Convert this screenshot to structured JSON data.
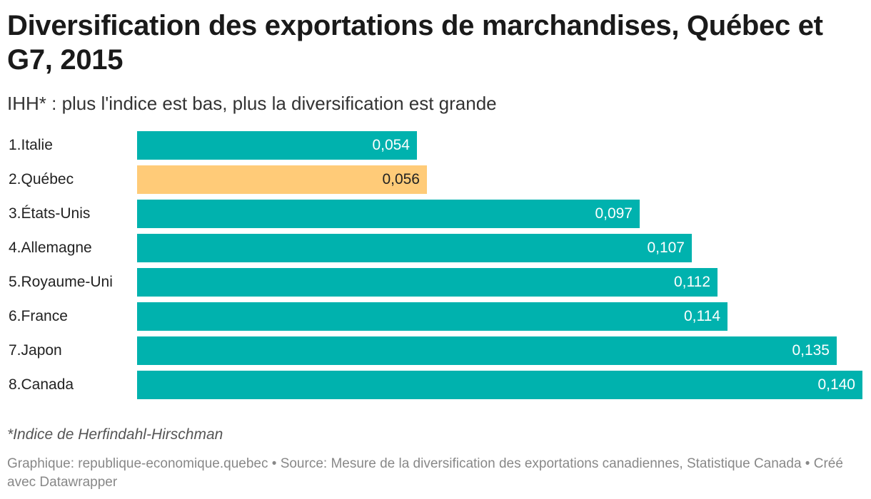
{
  "header": {
    "title": "Diversification des exportations de marchandises, Québec et G7, 2015",
    "subtitle": "IHH* : plus l'indice est bas, plus la diversification est grande"
  },
  "colors": {
    "default_bar": "#00B2AE",
    "highlight_bar": "#FFCB78",
    "label_on_default": "#ffffff",
    "label_on_highlight": "#222222"
  },
  "chart_data": {
    "type": "bar",
    "orientation": "horizontal",
    "title": "Diversification des exportations de marchandises, Québec et G7, 2015",
    "subtitle": "IHH* : plus l'indice est bas, plus la diversification est grande",
    "xlabel": "",
    "ylabel": "",
    "xlim": [
      0,
      0.14
    ],
    "grid": false,
    "categories": [
      "1.Italie",
      "2.Québec",
      "3.États-Unis",
      "4.Allemagne",
      "5.Royaume-Uni",
      "6.France",
      "7.Japon",
      "8.Canada"
    ],
    "values": [
      0.054,
      0.056,
      0.097,
      0.107,
      0.112,
      0.114,
      0.135,
      0.14
    ],
    "value_labels": [
      "0,054",
      "0,056",
      "0,097",
      "0,107",
      "0,112",
      "0,114",
      "0,135",
      "0,140"
    ],
    "highlight": [
      false,
      true,
      false,
      false,
      false,
      false,
      false,
      false
    ]
  },
  "footer": {
    "note": "*Indice de Herfindahl-Hirschman",
    "source": "Graphique: republique-economique.quebec • Source: Mesure de la diversification des exportations canadiennes, Statistique Canada • Créé avec Datawrapper"
  }
}
